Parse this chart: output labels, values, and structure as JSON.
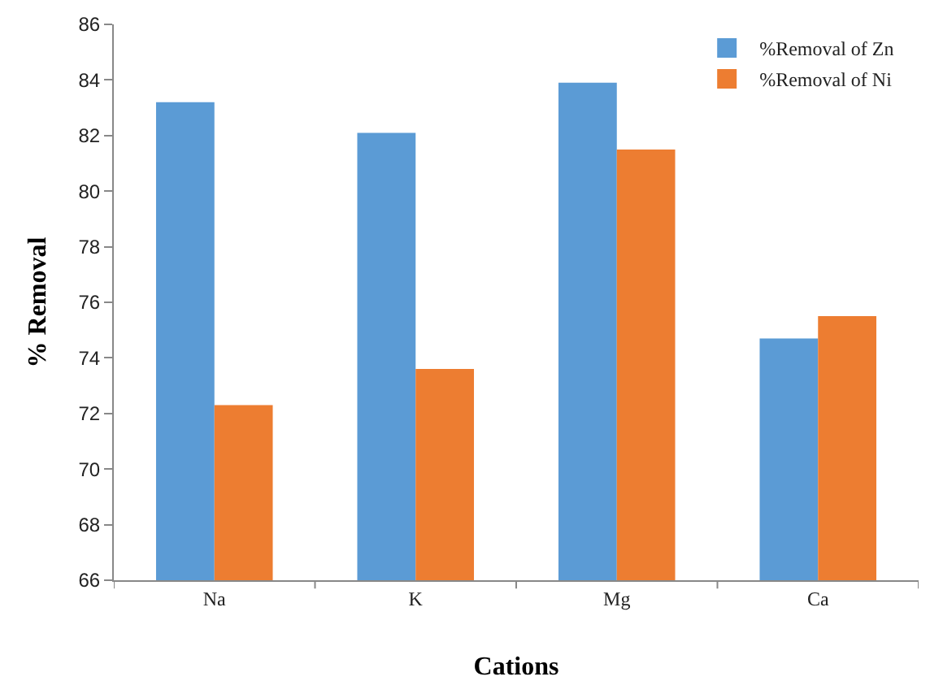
{
  "chart_data": {
    "type": "bar",
    "xlabel": "Cations",
    "ylabel": "% Removal",
    "categories": [
      "Na",
      "K",
      "Mg",
      "Ca"
    ],
    "series": [
      {
        "name": "%Removal of Zn",
        "color": "#5b9bd5",
        "values": [
          83.2,
          82.1,
          83.9,
          74.7
        ]
      },
      {
        "name": "%Removal of Ni",
        "color": "#ed7d31",
        "values": [
          72.3,
          73.6,
          81.5,
          75.5
        ]
      }
    ],
    "ylim": [
      66,
      86
    ],
    "yticks": [
      66,
      68,
      70,
      72,
      74,
      76,
      78,
      80,
      82,
      84,
      86
    ],
    "grid": false,
    "legend": "top right"
  }
}
